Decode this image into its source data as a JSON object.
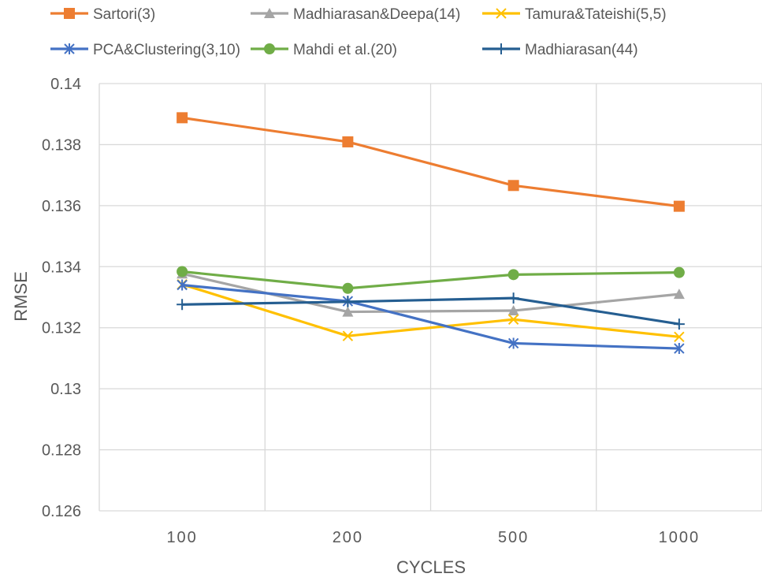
{
  "chart_data": {
    "type": "line",
    "categories": [
      "100",
      "200",
      "500",
      "1000"
    ],
    "xlabel": "CYCLES",
    "ylabel": "RMSE",
    "ylim": [
      0.126,
      0.14
    ],
    "yticks": [
      "0.126",
      "0.128",
      "0.13",
      "0.132",
      "0.134",
      "0.136",
      "0.138",
      "0.14"
    ],
    "grid": true,
    "legend_position": "top",
    "series": [
      {
        "name": "Sartori(3)",
        "color": "#ED7D31",
        "marker": "square",
        "values": [
          0.13888,
          0.13809,
          0.13666,
          0.13598
        ]
      },
      {
        "name": "Madhiarasan&Deepa(14)",
        "color": "#A5A5A5",
        "marker": "triangle",
        "values": [
          0.13377,
          0.13252,
          0.13256,
          0.1331
        ]
      },
      {
        "name": "Tamura&Tateishi(5,5)",
        "color": "#FFC000",
        "marker": "x",
        "values": [
          0.13342,
          0.13173,
          0.13227,
          0.1317
        ]
      },
      {
        "name": "PCA&Clustering(3,10)",
        "color": "#4472C4",
        "marker": "asterisk",
        "values": [
          0.1334,
          0.13287,
          0.13149,
          0.13132
        ]
      },
      {
        "name": "Mahdi et al.(20)",
        "color": "#70AD47",
        "marker": "circle",
        "values": [
          0.13384,
          0.13329,
          0.13374,
          0.13381
        ]
      },
      {
        "name": "Madhiarasan(44)",
        "color": "#255E91",
        "marker": "plus",
        "values": [
          0.13276,
          0.13285,
          0.13297,
          0.13212
        ]
      }
    ]
  }
}
